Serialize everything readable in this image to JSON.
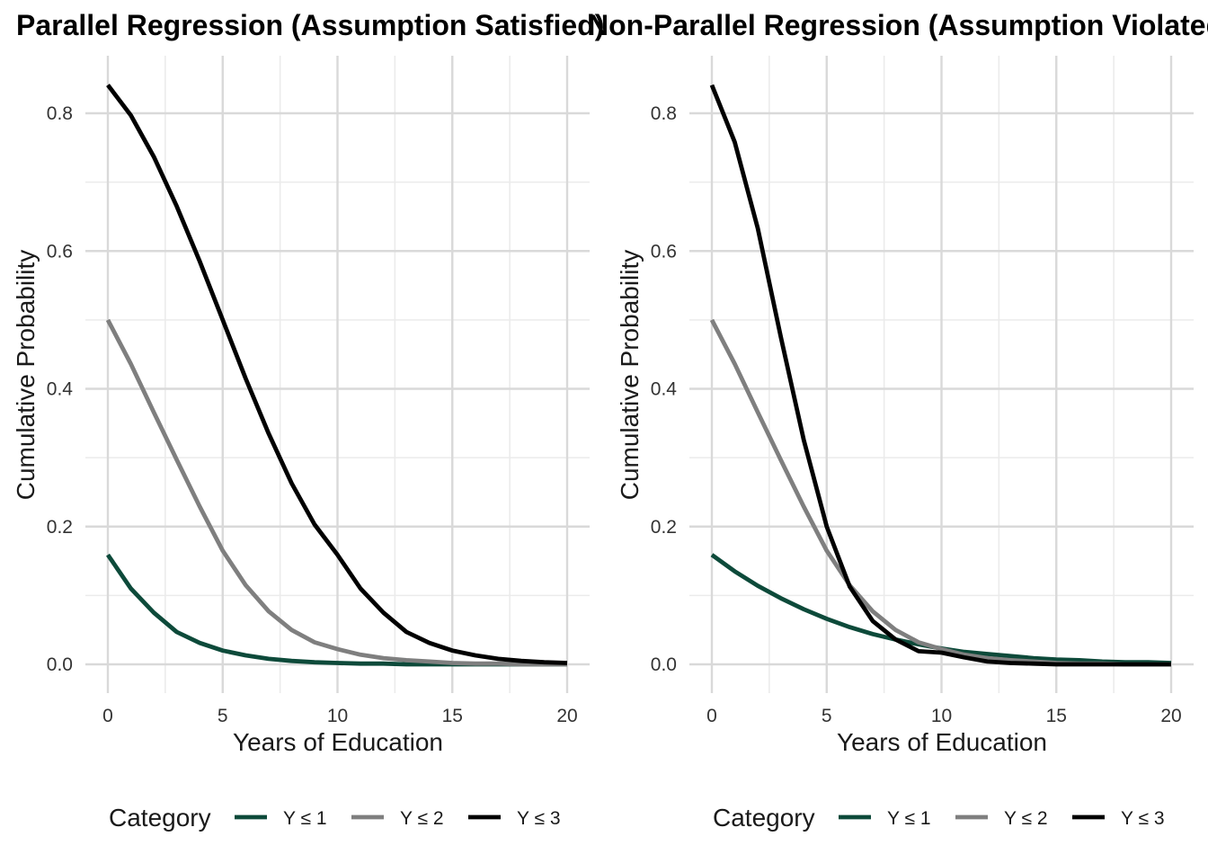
{
  "chart_data": [
    {
      "type": "line",
      "title": "Parallel Regression (Assumption Satisfied)",
      "xlabel": "Years of Education",
      "ylabel": "Cumulative Probability",
      "xlim": [
        0,
        20
      ],
      "ylim": [
        0,
        0.84
      ],
      "x_ticks": [
        0,
        5,
        10,
        15,
        20
      ],
      "x_tick_labels": [
        "0",
        "5",
        "10",
        "15",
        "20"
      ],
      "y_ticks": [
        0.0,
        0.2,
        0.4,
        0.6,
        0.8
      ],
      "y_tick_labels": [
        "0.0",
        "0.2",
        "0.4",
        "0.6",
        "0.8"
      ],
      "grid": true,
      "legend": {
        "title": "Category",
        "position": "bottom"
      },
      "x": [
        0,
        1,
        2,
        3,
        4,
        5,
        6,
        7,
        8,
        9,
        10,
        11,
        12,
        13,
        14,
        15,
        16,
        17,
        18,
        19,
        20
      ],
      "series": [
        {
          "name": "Y ≤ 1",
          "color": "#0d4a3a",
          "values": [
            0.159,
            0.11,
            0.075,
            0.047,
            0.031,
            0.02,
            0.013,
            0.008,
            0.005,
            0.003,
            0.002,
            0.001,
            0.001,
            0.0,
            0.0,
            0.0,
            0.0,
            0.0,
            0.0,
            0.0,
            0.0
          ]
        },
        {
          "name": "Y ≤ 2",
          "color": "#7f7f7f",
          "values": [
            0.5,
            0.436,
            0.366,
            0.297,
            0.229,
            0.165,
            0.115,
            0.077,
            0.05,
            0.032,
            0.022,
            0.014,
            0.009,
            0.006,
            0.004,
            0.002,
            0.001,
            0.001,
            0.0,
            0.0,
            0.0
          ]
        },
        {
          "name": "Y ≤ 3",
          "color": "#000000",
          "values": [
            0.841,
            0.797,
            0.737,
            0.665,
            0.585,
            0.5,
            0.415,
            0.335,
            0.263,
            0.203,
            0.159,
            0.11,
            0.075,
            0.047,
            0.031,
            0.02,
            0.013,
            0.008,
            0.005,
            0.003,
            0.002
          ]
        }
      ]
    },
    {
      "type": "line",
      "title": "Non-Parallel Regression (Assumption Violated)",
      "xlabel": "Years of Education",
      "ylabel": "Cumulative Probability",
      "xlim": [
        0,
        20
      ],
      "ylim": [
        0,
        0.84
      ],
      "x_ticks": [
        0,
        5,
        10,
        15,
        20
      ],
      "x_tick_labels": [
        "0",
        "5",
        "10",
        "15",
        "20"
      ],
      "y_ticks": [
        0.0,
        0.2,
        0.4,
        0.6,
        0.8
      ],
      "y_tick_labels": [
        "0.0",
        "0.2",
        "0.4",
        "0.6",
        "0.8"
      ],
      "grid": true,
      "legend": {
        "title": "Category",
        "position": "bottom"
      },
      "x": [
        0,
        1,
        2,
        3,
        4,
        5,
        6,
        7,
        8,
        9,
        10,
        11,
        12,
        13,
        14,
        15,
        16,
        17,
        18,
        19,
        20
      ],
      "series": [
        {
          "name": "Y ≤ 1",
          "color": "#0d4a3a",
          "values": [
            0.159,
            0.135,
            0.114,
            0.096,
            0.08,
            0.066,
            0.054,
            0.044,
            0.036,
            0.029,
            0.023,
            0.018,
            0.015,
            0.012,
            0.009,
            0.007,
            0.006,
            0.004,
            0.003,
            0.003,
            0.002
          ]
        },
        {
          "name": "Y ≤ 2",
          "color": "#7f7f7f",
          "values": [
            0.5,
            0.436,
            0.366,
            0.297,
            0.229,
            0.165,
            0.115,
            0.077,
            0.05,
            0.032,
            0.022,
            0.014,
            0.009,
            0.006,
            0.004,
            0.002,
            0.001,
            0.001,
            0.0,
            0.0,
            0.0
          ]
        },
        {
          "name": "Y ≤ 3",
          "color": "#000000",
          "values": [
            0.841,
            0.758,
            0.633,
            0.476,
            0.326,
            0.2,
            0.113,
            0.063,
            0.036,
            0.019,
            0.017,
            0.01,
            0.004,
            0.002,
            0.001,
            0.0,
            0.0,
            0.0,
            0.0,
            0.0,
            0.0
          ]
        }
      ]
    }
  ]
}
